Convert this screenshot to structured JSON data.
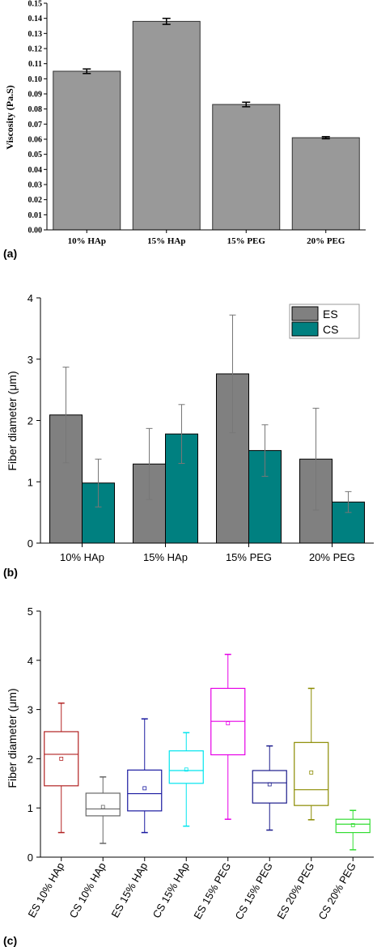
{
  "panels": {
    "a": {
      "label": "(a)"
    },
    "b": {
      "label": "(b)"
    },
    "c": {
      "label": "(c)"
    }
  },
  "chart_data": [
    {
      "type": "bar",
      "title": "",
      "xlabel": "",
      "ylabel": "Viscosity (Pa.S)",
      "categories": [
        "10% HAp",
        "15% HAp",
        "15% PEG",
        "20% PEG"
      ],
      "values": [
        0.105,
        0.138,
        0.083,
        0.061
      ],
      "errors": [
        0.0015,
        0.002,
        0.0015,
        0.0007
      ],
      "ylim": [
        0,
        0.15
      ],
      "yticks": [
        "0.00",
        "0.01",
        "0.02",
        "0.03",
        "0.04",
        "0.05",
        "0.06",
        "0.07",
        "0.08",
        "0.09",
        "0.10",
        "0.11",
        "0.12",
        "0.13",
        "0.14",
        "0.15"
      ],
      "bar_color": "#999999",
      "grid": false
    },
    {
      "type": "bar",
      "title": "",
      "xlabel": "",
      "ylabel": "Fiber diameter (μm)",
      "categories": [
        "10% HAp",
        "15% HAp",
        "15% PEG",
        "20% PEG"
      ],
      "series": [
        {
          "name": "ES",
          "color": "#808080",
          "values": [
            2.09,
            1.29,
            2.76,
            1.37
          ],
          "errors": [
            0.78,
            0.58,
            0.96,
            0.83
          ]
        },
        {
          "name": "CS",
          "color": "#008080",
          "values": [
            0.98,
            1.78,
            1.51,
            0.67
          ],
          "errors": [
            0.39,
            0.48,
            0.42,
            0.17
          ]
        }
      ],
      "ylim": [
        0,
        4
      ],
      "yticks": [
        "0",
        "1",
        "2",
        "3",
        "4"
      ],
      "legend": "top-right",
      "grid": false
    },
    {
      "type": "box",
      "title": "",
      "xlabel": "",
      "ylabel": "Fiber diameter (μm)",
      "ylim": [
        0,
        5
      ],
      "yticks": [
        "0",
        "1",
        "2",
        "3",
        "4",
        "5"
      ],
      "grid": false,
      "boxes": [
        {
          "label": "ES 10% HAp",
          "color": "#b22222",
          "min": 0.5,
          "q1": 1.45,
          "median": 2.09,
          "q3": 2.55,
          "max": 3.13,
          "mean": 2.0
        },
        {
          "label": "CS 10% HAp",
          "color": "#666666",
          "min": 0.28,
          "q1": 0.84,
          "median": 0.98,
          "q3": 1.3,
          "max": 1.63,
          "mean": 1.02
        },
        {
          "label": "ES 15% HAp",
          "color": "#1a1aa0",
          "min": 0.5,
          "q1": 0.94,
          "median": 1.29,
          "q3": 1.77,
          "max": 2.81,
          "mean": 1.4
        },
        {
          "label": "CS 15% HAp",
          "color": "#00e5ee",
          "min": 0.63,
          "q1": 1.5,
          "median": 1.76,
          "q3": 2.16,
          "max": 2.53,
          "mean": 1.78
        },
        {
          "label": "ES 15% PEG",
          "color": "#e600e6",
          "min": 0.77,
          "q1": 2.08,
          "median": 2.76,
          "q3": 3.43,
          "max": 4.12,
          "mean": 2.72
        },
        {
          "label": "CS 15% PEG",
          "color": "#1c1c8c",
          "min": 0.55,
          "q1": 1.1,
          "median": 1.51,
          "q3": 1.76,
          "max": 2.26,
          "mean": 1.48
        },
        {
          "label": "ES 20% PEG",
          "color": "#8b8b00",
          "min": 0.76,
          "q1": 1.05,
          "median": 1.37,
          "q3": 2.33,
          "max": 3.43,
          "mean": 1.72
        },
        {
          "label": "CS 20% PEG",
          "color": "#33dd33",
          "min": 0.15,
          "q1": 0.5,
          "median": 0.67,
          "q3": 0.77,
          "max": 0.95,
          "mean": 0.65
        }
      ]
    }
  ]
}
